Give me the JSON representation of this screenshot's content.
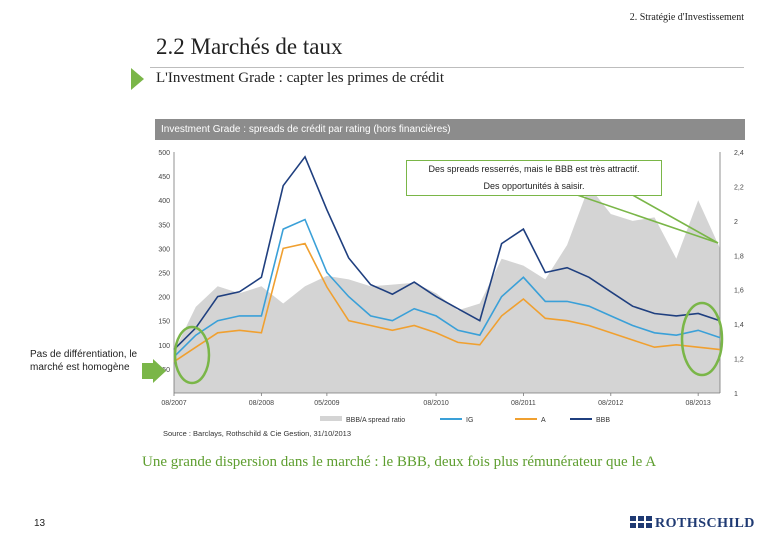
{
  "header": {
    "section": "2. Stratégie d'Investissement"
  },
  "title": "2.2 Marchés de taux",
  "subtitle": "L'Investment Grade : capter les primes de crédit",
  "chart_header": "Investment Grade : spreads de crédit par rating (hors financières)",
  "callout": {
    "line1": "Des spreads resserrés, mais le BBB est très attractif.",
    "line2": "Des opportunités à saisir."
  },
  "side_note": "Pas de différentiation, le marché est homogène",
  "conclusion": "Une grande dispersion dans le marché : le BBB, deux fois plus rémunérateur que le A",
  "page_number": "13",
  "brand": "ROTHSCHILD",
  "colors": {
    "accent_green": "#7ab648",
    "ig": "#3aa0d8",
    "a": "#f0a030",
    "bbb": "#1f3f7f",
    "ratio": "#d4d4d4"
  },
  "chart_data": {
    "type": "line",
    "title": "Investment Grade : spreads de crédit par rating (hors financières)",
    "x": [
      "08/2007",
      "11/2007",
      "02/2008",
      "05/2008",
      "08/2008",
      "11/2008",
      "02/2009",
      "05/2009",
      "08/2009",
      "11/2009",
      "02/2010",
      "05/2010",
      "08/2010",
      "11/2010",
      "02/2011",
      "05/2011",
      "08/2011",
      "11/2011",
      "02/2012",
      "05/2012",
      "08/2012",
      "11/2012",
      "02/2013",
      "05/2013",
      "08/2013",
      "11/2013"
    ],
    "x_tick_labels": [
      "08/2007",
      "08/2008",
      "05/2009",
      "08/2010",
      "08/2011",
      "08/2012",
      "08/2013"
    ],
    "left_axis": {
      "ylim": [
        0,
        500
      ],
      "ticks": [
        500,
        450,
        400,
        350,
        300,
        250,
        200,
        150,
        100,
        50
      ]
    },
    "right_axis": {
      "ylim": [
        1,
        2.4
      ],
      "ticks": [
        "2,4",
        "2,2",
        "2",
        "1,8",
        "1,6",
        "1,4",
        "1,2",
        "1"
      ]
    },
    "series": [
      {
        "name": "BBB/A spread ratio",
        "axis": "right",
        "style": "area",
        "values": [
          1.24,
          1.5,
          1.62,
          1.58,
          1.62,
          1.52,
          1.62,
          1.68,
          1.66,
          1.62,
          1.63,
          1.64,
          1.58,
          1.48,
          1.52,
          1.78,
          1.74,
          1.66,
          1.86,
          2.2,
          2.04,
          2.0,
          2.02,
          1.78,
          2.12,
          1.84
        ]
      },
      {
        "name": "IG",
        "axis": "left",
        "style": "line",
        "values": [
          75,
          120,
          150,
          160,
          160,
          340,
          360,
          250,
          200,
          160,
          150,
          175,
          160,
          130,
          120,
          200,
          240,
          190,
          190,
          180,
          160,
          140,
          125,
          120,
          130,
          115
        ]
      },
      {
        "name": "A",
        "axis": "left",
        "style": "line",
        "values": [
          65,
          95,
          125,
          130,
          125,
          300,
          310,
          220,
          150,
          140,
          130,
          140,
          125,
          105,
          100,
          160,
          195,
          155,
          150,
          140,
          125,
          110,
          95,
          100,
          95,
          90
        ]
      },
      {
        "name": "BBB",
        "axis": "left",
        "style": "line",
        "values": [
          90,
          135,
          200,
          210,
          240,
          430,
          490,
          380,
          280,
          225,
          205,
          230,
          200,
          175,
          150,
          310,
          340,
          250,
          260,
          240,
          210,
          180,
          165,
          160,
          165,
          150
        ]
      }
    ],
    "legend": [
      "BBB/A spread ratio",
      "IG",
      "A",
      "BBB"
    ],
    "source": "Source : Barclays, Rothschild & Cie Gestion, 31/10/2013"
  }
}
